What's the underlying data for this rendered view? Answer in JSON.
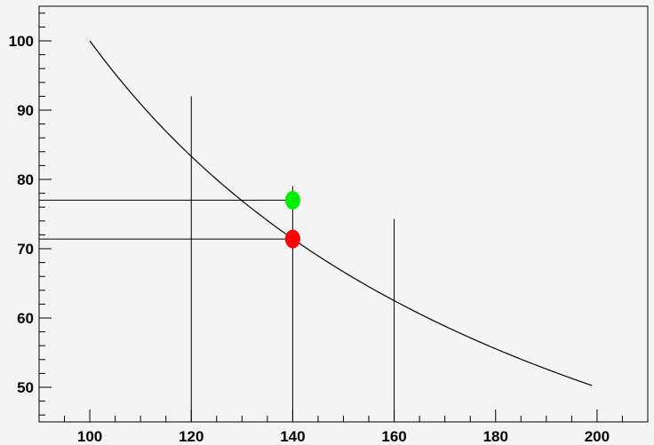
{
  "chart_data": {
    "type": "line",
    "title": "",
    "xlabel": "",
    "ylabel": "",
    "xlim": [
      90,
      210
    ],
    "ylim": [
      45,
      105
    ],
    "grid": false,
    "x_ticks": [
      100,
      120,
      140,
      160,
      180,
      200
    ],
    "y_ticks": [
      50,
      60,
      70,
      80,
      90,
      100
    ],
    "x_tick_labels": [
      "100",
      "120",
      "140",
      "160",
      "180",
      "200"
    ],
    "y_tick_labels": [
      "50",
      "60",
      "70",
      "80",
      "90",
      "100"
    ],
    "curve": {
      "formula": "10000/x",
      "x_start": 100,
      "x_end": 199,
      "color": "#000000"
    },
    "vertical_lines": [
      {
        "x": 120,
        "y_top": 92
      },
      {
        "x": 140,
        "y_top": 79
      },
      {
        "x": 160,
        "y_top": 74.3
      }
    ],
    "horizontal_lines": [
      {
        "y": 77,
        "x_end": 140
      },
      {
        "y": 71.4,
        "x_end": 140
      }
    ],
    "points": [
      {
        "x": 140,
        "y": 77,
        "color": "#00ee00"
      },
      {
        "x": 140,
        "y": 71.4,
        "color": "#ff0000"
      }
    ]
  }
}
